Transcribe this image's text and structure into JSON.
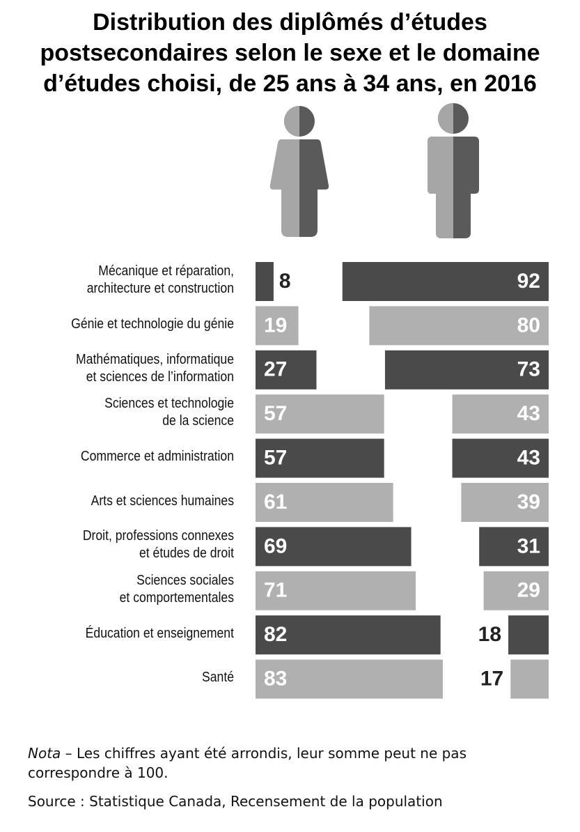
{
  "title_lines": [
    "Distribution des diplômés d’études",
    "postsecondaires selon le sexe et le domaine",
    "d’études choisi, de 25 ans à 34 ans, en 2016"
  ],
  "note": {
    "label": "Nota",
    "text": " – Les chiffres ayant été arrondis, leur somme peut ne pas correspondre à 100."
  },
  "source": "Source : Statistique Canada, Recensement de la population",
  "icons": [
    "woman-icon",
    "man-icon"
  ],
  "colors": {
    "dark": "#4a4a4a",
    "light": "#b0b0b0",
    "text_on_bar": "#ffffff",
    "text_outside": "#222222"
  },
  "chart_data": {
    "type": "bar",
    "orientation": "horizontal-diverging",
    "categories": [
      [
        "Mécanique et réparation,",
        "architecture et construction"
      ],
      [
        "Génie et technologie du génie"
      ],
      [
        "Mathématiques, informatique",
        "et sciences de  l’information"
      ],
      [
        "Sciences et technologie",
        "de la science"
      ],
      [
        "Commerce et administration"
      ],
      [
        "Arts et sciences humaines"
      ],
      [
        "Droit, professions connexes",
        "et études de droit"
      ],
      [
        "Sciences sociales",
        "et comportementales"
      ],
      [
        "Éducation et enseignement"
      ],
      [
        "Santé"
      ]
    ],
    "series": [
      {
        "icon": "woman-icon",
        "values": [
          8,
          19,
          27,
          57,
          57,
          61,
          69,
          71,
          82,
          83
        ]
      },
      {
        "icon": "man-icon",
        "values": [
          92,
          80,
          73,
          43,
          43,
          39,
          31,
          29,
          18,
          17
        ]
      }
    ],
    "row_shades": [
      "dark",
      "light",
      "dark",
      "light",
      "dark",
      "light",
      "dark",
      "light",
      "dark",
      "light"
    ],
    "xlim": [
      0,
      100
    ]
  }
}
